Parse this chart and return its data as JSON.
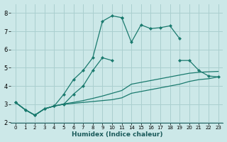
{
  "xlabel": "Humidex (Indice chaleur)",
  "bg_color": "#cce8e8",
  "grid_color": "#aacfcf",
  "line_color": "#1a7a6e",
  "ylim": [
    2,
    8.5
  ],
  "yticks": [
    2,
    3,
    4,
    5,
    6,
    7,
    8
  ],
  "x_positions": [
    0,
    1,
    2,
    3,
    4,
    5,
    6,
    7,
    8,
    9,
    10,
    11,
    14,
    15,
    16,
    17,
    18,
    19,
    20,
    21,
    22,
    23
  ],
  "xtick_labels": [
    "0",
    "1",
    "2",
    "3",
    "4",
    "5",
    "6",
    "7",
    "8",
    "9",
    "10",
    "11",
    "14",
    "15",
    "16",
    "17",
    "18",
    "19",
    "20",
    "21",
    "22",
    "23"
  ],
  "series1_x": [
    0,
    1,
    2,
    3,
    4,
    5,
    6,
    7,
    8,
    9,
    10,
    11
  ],
  "series1_y": [
    3.1,
    2.7,
    2.4,
    2.75,
    2.9,
    3.55,
    4.35,
    4.85,
    5.55,
    7.55,
    7.85,
    7.75
  ],
  "series1b_x": [
    11,
    14,
    15,
    16,
    17,
    18,
    19
  ],
  "series1b_y": [
    7.75,
    6.4,
    7.35,
    7.15,
    7.2,
    7.3,
    6.6
  ],
  "series2_x": [
    0,
    1,
    2,
    3,
    4,
    5,
    6,
    7,
    8,
    9,
    10
  ],
  "series2_y": [
    3.1,
    2.7,
    2.4,
    2.75,
    2.9,
    3.0,
    3.55,
    4.0,
    4.85,
    5.55,
    5.4
  ],
  "series2b_x": [
    19,
    20,
    21,
    22,
    23
  ],
  "series2b_y": [
    5.4,
    5.4,
    4.85,
    4.55,
    4.5
  ],
  "series3_x": [
    0,
    1,
    2,
    3,
    4,
    5,
    6,
    7,
    8,
    9,
    10,
    11,
    14,
    15,
    16,
    17,
    18,
    19,
    20,
    21,
    22,
    23
  ],
  "series3_y": [
    3.1,
    2.7,
    2.4,
    2.75,
    2.9,
    3.0,
    3.05,
    3.1,
    3.15,
    3.2,
    3.25,
    3.35,
    3.6,
    3.7,
    3.8,
    3.9,
    4.0,
    4.1,
    4.25,
    4.35,
    4.4,
    4.5
  ],
  "series4_x": [
    0,
    1,
    2,
    3,
    4,
    5,
    6,
    7,
    8,
    9,
    10,
    11,
    14,
    15,
    16,
    17,
    18,
    19,
    20,
    21,
    22,
    23
  ],
  "series4_y": [
    3.1,
    2.7,
    2.4,
    2.75,
    2.9,
    3.02,
    3.1,
    3.2,
    3.32,
    3.45,
    3.6,
    3.75,
    4.1,
    4.2,
    4.3,
    4.4,
    4.5,
    4.6,
    4.7,
    4.75,
    4.78,
    4.8
  ]
}
